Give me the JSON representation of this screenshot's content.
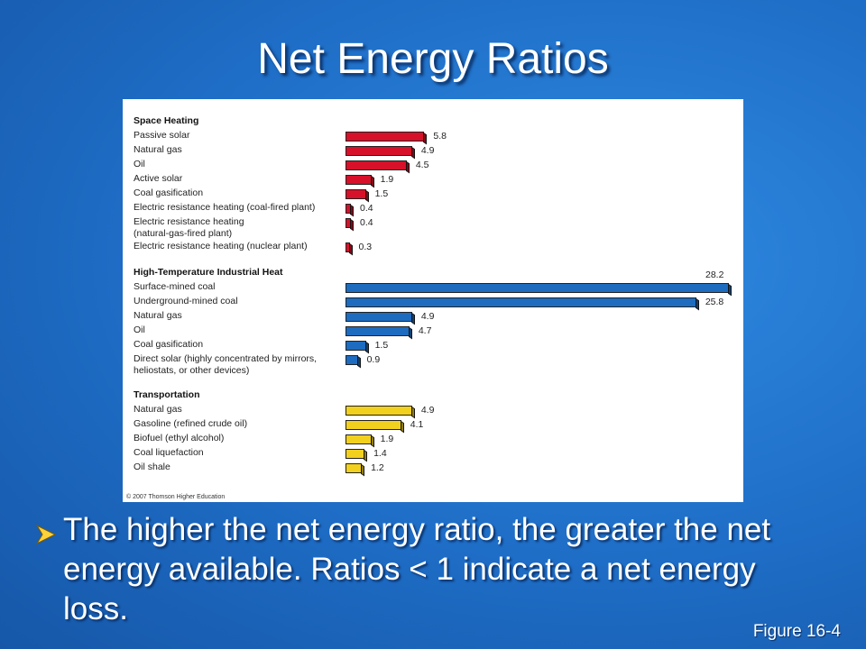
{
  "title": "Net Energy Ratios",
  "chart_data": {
    "type": "bar",
    "groups": [
      {
        "name": "Space Heating",
        "color": "#d8112a",
        "categories": [
          "Passive solar",
          "Natural gas",
          "Oil",
          "Active solar",
          "Coal gasification",
          "Electric resistance heating (coal-fired plant)",
          "Electric resistance heating\n(natural-gas-fired plant)",
          "Electric resistance heating (nuclear plant)"
        ],
        "values": [
          5.8,
          4.9,
          4.5,
          1.9,
          1.5,
          0.4,
          0.4,
          0.3
        ]
      },
      {
        "name": "High-Temperature Industrial Heat",
        "color": "#1d6cc0",
        "categories": [
          "Surface-mined coal",
          "Underground-mined coal",
          "Natural gas",
          "Oil",
          "Coal gasification",
          "Direct solar (highly concentrated by mirrors,\nheliostats, or other devices)"
        ],
        "values": [
          28.2,
          25.8,
          4.9,
          4.7,
          1.5,
          0.9
        ]
      },
      {
        "name": "Transportation",
        "color": "#f2d01e",
        "categories": [
          "Natural gas",
          "Gasoline (refined crude oil)",
          "Biofuel (ethyl alcohol)",
          "Coal liquefaction",
          "Oil shale"
        ],
        "values": [
          4.9,
          4.1,
          1.9,
          1.4,
          1.2
        ]
      }
    ],
    "copyright": "© 2007 Thomson Higher Education"
  },
  "bullet": "The higher the net energy ratio, the greater the net energy available. Ratios < 1 indicate a net energy loss.",
  "figure": "Figure 16-4"
}
